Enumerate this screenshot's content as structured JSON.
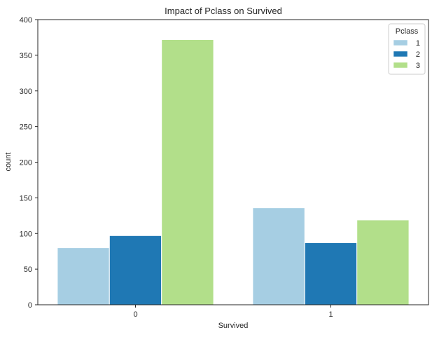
{
  "chart_data": {
    "type": "bar",
    "title": "Impact of Pclass on Survived",
    "xlabel": "Survived",
    "ylabel": "count",
    "categories": [
      "0",
      "1"
    ],
    "ylim": [
      0,
      400
    ],
    "yticks": [
      0,
      50,
      100,
      150,
      200,
      250,
      300,
      350,
      400
    ],
    "grid": false,
    "legend": {
      "title": "Pclass",
      "placement": "top-right"
    },
    "series": [
      {
        "name": "1",
        "color": "#a6cee3",
        "values": [
          80,
          136
        ]
      },
      {
        "name": "2",
        "color": "#1f78b4",
        "values": [
          97,
          87
        ]
      },
      {
        "name": "3",
        "color": "#b2df8a",
        "values": [
          372,
          119
        ]
      }
    ]
  }
}
